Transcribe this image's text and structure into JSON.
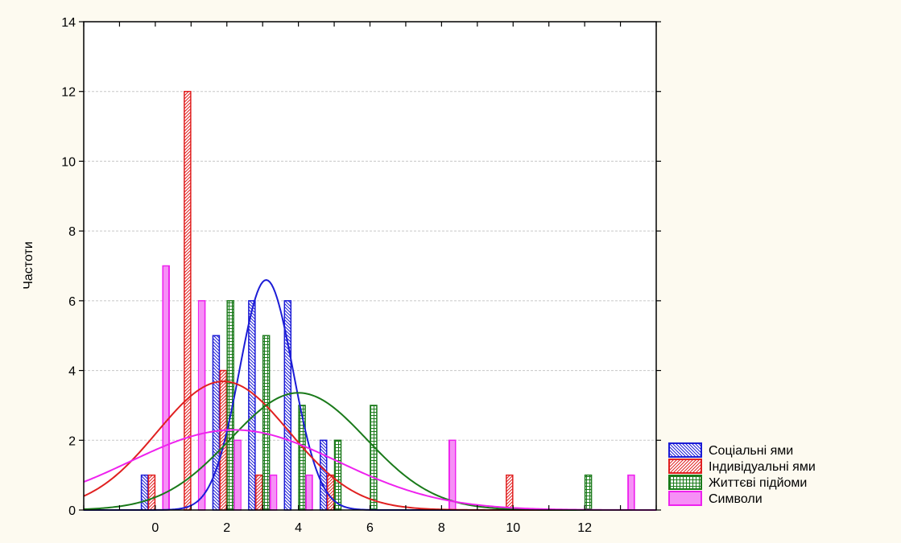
{
  "chart_data": {
    "type": "bar",
    "ylabel": "Частоти",
    "xlim": [
      -2,
      14
    ],
    "ylim": [
      0,
      14
    ],
    "x_ticks": [
      0,
      2,
      4,
      6,
      8,
      10,
      12
    ],
    "y_ticks": [
      0,
      2,
      4,
      6,
      8,
      10,
      12,
      14
    ],
    "grid": true,
    "legend_position": "bottom-right",
    "series": [
      {
        "name": "Соціальні ями",
        "color": "#1c1cd6",
        "pattern": "diag-left",
        "bars": [
          {
            "x": -0.3,
            "y": 1
          },
          {
            "x": 1.7,
            "y": 5
          },
          {
            "x": 2.7,
            "y": 6
          },
          {
            "x": 3.7,
            "y": 6
          },
          {
            "x": 4.7,
            "y": 2
          }
        ],
        "curve": {
          "mean": 3.1,
          "sd": 0.75,
          "scale": 12.4
        }
      },
      {
        "name": "Індивідуальні ями",
        "color": "#e02020",
        "pattern": "diag-right",
        "bars": [
          {
            "x": -0.1,
            "y": 1
          },
          {
            "x": 0.9,
            "y": 12
          },
          {
            "x": 1.9,
            "y": 4
          },
          {
            "x": 2.9,
            "y": 1
          },
          {
            "x": 4.9,
            "y": 1
          },
          {
            "x": 9.9,
            "y": 1
          }
        ],
        "curve": {
          "mean": 1.9,
          "sd": 1.85,
          "scale": 17.1
        }
      },
      {
        "name": "Життєві підйоми",
        "color": "#1a7a1a",
        "pattern": "grid",
        "bars": [
          {
            "x": 2.1,
            "y": 6
          },
          {
            "x": 3.1,
            "y": 5
          },
          {
            "x": 4.1,
            "y": 3
          },
          {
            "x": 5.1,
            "y": 2
          },
          {
            "x": 6.1,
            "y": 3
          },
          {
            "x": 12.1,
            "y": 1
          }
        ],
        "curve": {
          "mean": 4.0,
          "sd": 1.9,
          "scale": 16.0
        }
      },
      {
        "name": "Символи",
        "color": "#ee22ee",
        "pattern": "vertical",
        "bars": [
          {
            "x": 0.3,
            "y": 7
          },
          {
            "x": 1.3,
            "y": 6
          },
          {
            "x": 2.3,
            "y": 2
          },
          {
            "x": 3.3,
            "y": 1
          },
          {
            "x": 4.3,
            "y": 1
          },
          {
            "x": 8.3,
            "y": 2
          },
          {
            "x": 13.3,
            "y": 1
          }
        ],
        "curve": {
          "mean": 2.2,
          "sd": 2.9,
          "scale": 16.7
        }
      }
    ]
  }
}
